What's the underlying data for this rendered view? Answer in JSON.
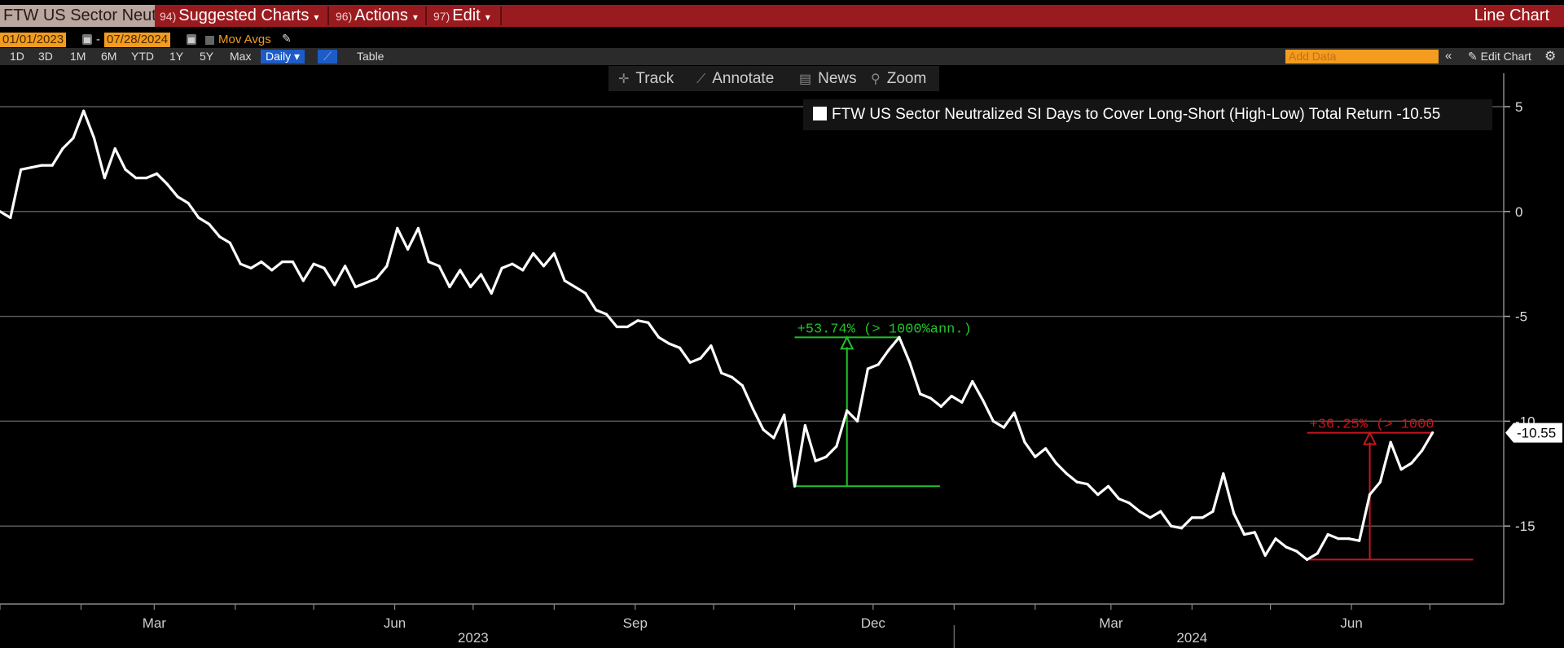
{
  "menubar": {
    "security": "FTW US Sector Neut",
    "suggested_num": "94)",
    "suggested_label": "Suggested Charts",
    "actions_num": "96)",
    "actions_label": "Actions",
    "edit_num": "97)",
    "edit_label": "Edit",
    "chart_type": "Line Chart"
  },
  "daterange": {
    "start": "01/01/2023",
    "end": "07/28/2024",
    "separator": "-",
    "mov_avgs": "Mov Avgs"
  },
  "periods": [
    "1D",
    "3D",
    "1M",
    "6M",
    "YTD",
    "1Y",
    "5Y",
    "Max"
  ],
  "frequency": "Daily",
  "table_label": "Table",
  "add_data_placeholder": "Add Data",
  "edit_chart_label": "Edit Chart",
  "toolbar": {
    "track": "Track",
    "annotate": "Annotate",
    "news": "News",
    "zoom": "Zoom"
  },
  "legend": {
    "label": "FTW US Sector Neutralized SI Days to Cover Long-Short (High-Low) Total Return -10.55"
  },
  "colors": {
    "menubar": "#9a1b1f",
    "accent_orange": "#f39c1f",
    "series": "#ffffff",
    "annotation_green": "#22c22a",
    "annotation_red": "#c8161c"
  },
  "icons": [
    "pencil-icon",
    "calendar-icon",
    "track-crosshair-icon",
    "annotate-pencil-icon",
    "news-icon",
    "zoom-magnifier-icon",
    "collapse-icon",
    "settings-gear-icon"
  ],
  "chart_data": {
    "type": "line",
    "title": "",
    "xlabel": "",
    "ylabel": "",
    "ylim": [
      -18.5,
      5.5
    ],
    "yticks": [
      5,
      0,
      -5,
      -10,
      -15
    ],
    "ytick_labels": [
      "5",
      "0",
      "-5",
      "-10",
      "-15"
    ],
    "x_range": [
      "2023-01-01",
      "2024-07-28"
    ],
    "month_ticks": [
      {
        "label": "Mar",
        "date": "2023-03-01"
      },
      {
        "label": "Jun",
        "date": "2023-06-01"
      },
      {
        "label": "Sep",
        "date": "2023-09-01"
      },
      {
        "label": "Dec",
        "date": "2023-12-01"
      },
      {
        "label": "Mar",
        "date": "2024-03-01"
      },
      {
        "label": "Jun",
        "date": "2024-06-01"
      }
    ],
    "year_labels": [
      {
        "label": "2023",
        "date": "2023-07-01"
      },
      {
        "label": "2024",
        "date": "2024-04-01"
      }
    ],
    "grid": true,
    "last_value_label": "-10.55",
    "series": [
      {
        "name": "FTW US Sector Neutralized SI Days to Cover Long-Short (High-Low) Total Return",
        "color": "#ffffff",
        "points": [
          [
            "2023-01-01",
            0.0
          ],
          [
            "2023-01-05",
            -0.3
          ],
          [
            "2023-01-09",
            2.0
          ],
          [
            "2023-01-13",
            2.1
          ],
          [
            "2023-01-17",
            2.2
          ],
          [
            "2023-01-21",
            2.2
          ],
          [
            "2023-01-25",
            3.0
          ],
          [
            "2023-01-29",
            3.5
          ],
          [
            "2023-02-02",
            4.8
          ],
          [
            "2023-02-06",
            3.5
          ],
          [
            "2023-02-10",
            1.6
          ],
          [
            "2023-02-14",
            3.0
          ],
          [
            "2023-02-18",
            2.0
          ],
          [
            "2023-02-22",
            1.6
          ],
          [
            "2023-02-26",
            1.6
          ],
          [
            "2023-03-02",
            1.8
          ],
          [
            "2023-03-06",
            1.3
          ],
          [
            "2023-03-10",
            0.7
          ],
          [
            "2023-03-14",
            0.4
          ],
          [
            "2023-03-18",
            -0.3
          ],
          [
            "2023-03-22",
            -0.6
          ],
          [
            "2023-03-26",
            -1.2
          ],
          [
            "2023-03-30",
            -1.5
          ],
          [
            "2023-04-03",
            -2.5
          ],
          [
            "2023-04-07",
            -2.7
          ],
          [
            "2023-04-11",
            -2.4
          ],
          [
            "2023-04-15",
            -2.8
          ],
          [
            "2023-04-19",
            -2.4
          ],
          [
            "2023-04-23",
            -2.4
          ],
          [
            "2023-04-27",
            -3.3
          ],
          [
            "2023-05-01",
            -2.5
          ],
          [
            "2023-05-05",
            -2.7
          ],
          [
            "2023-05-09",
            -3.5
          ],
          [
            "2023-05-13",
            -2.6
          ],
          [
            "2023-05-17",
            -3.6
          ],
          [
            "2023-05-21",
            -3.4
          ],
          [
            "2023-05-25",
            -3.2
          ],
          [
            "2023-05-29",
            -2.6
          ],
          [
            "2023-06-02",
            -0.8
          ],
          [
            "2023-06-06",
            -1.8
          ],
          [
            "2023-06-10",
            -0.8
          ],
          [
            "2023-06-14",
            -2.4
          ],
          [
            "2023-06-18",
            -2.6
          ],
          [
            "2023-06-22",
            -3.6
          ],
          [
            "2023-06-26",
            -2.8
          ],
          [
            "2023-06-30",
            -3.6
          ],
          [
            "2023-07-04",
            -3.0
          ],
          [
            "2023-07-08",
            -3.9
          ],
          [
            "2023-07-12",
            -2.7
          ],
          [
            "2023-07-16",
            -2.5
          ],
          [
            "2023-07-20",
            -2.8
          ],
          [
            "2023-07-24",
            -2.0
          ],
          [
            "2023-07-28",
            -2.6
          ],
          [
            "2023-08-01",
            -2.0
          ],
          [
            "2023-08-05",
            -3.3
          ],
          [
            "2023-08-09",
            -3.6
          ],
          [
            "2023-08-13",
            -3.9
          ],
          [
            "2023-08-17",
            -4.7
          ],
          [
            "2023-08-21",
            -4.9
          ],
          [
            "2023-08-25",
            -5.5
          ],
          [
            "2023-08-29",
            -5.5
          ],
          [
            "2023-09-02",
            -5.2
          ],
          [
            "2023-09-06",
            -5.3
          ],
          [
            "2023-09-10",
            -6.0
          ],
          [
            "2023-09-14",
            -6.3
          ],
          [
            "2023-09-18",
            -6.5
          ],
          [
            "2023-09-22",
            -7.2
          ],
          [
            "2023-09-26",
            -7.0
          ],
          [
            "2023-09-30",
            -6.4
          ],
          [
            "2023-10-04",
            -7.7
          ],
          [
            "2023-10-08",
            -7.9
          ],
          [
            "2023-10-12",
            -8.3
          ],
          [
            "2023-10-16",
            -9.4
          ],
          [
            "2023-10-20",
            -10.4
          ],
          [
            "2023-10-24",
            -10.8
          ],
          [
            "2023-10-28",
            -9.7
          ],
          [
            "2023-11-01",
            -13.1
          ],
          [
            "2023-11-05",
            -10.2
          ],
          [
            "2023-11-09",
            -11.9
          ],
          [
            "2023-11-13",
            -11.7
          ],
          [
            "2023-11-17",
            -11.2
          ],
          [
            "2023-11-21",
            -9.5
          ],
          [
            "2023-11-25",
            -10.0
          ],
          [
            "2023-11-29",
            -7.5
          ],
          [
            "2023-12-03",
            -7.3
          ],
          [
            "2023-12-07",
            -6.6
          ],
          [
            "2023-12-11",
            -6.0
          ],
          [
            "2023-12-15",
            -7.2
          ],
          [
            "2023-12-19",
            -8.7
          ],
          [
            "2023-12-23",
            -8.9
          ],
          [
            "2023-12-27",
            -9.3
          ],
          [
            "2023-12-31",
            -8.8
          ],
          [
            "2024-01-04",
            -9.1
          ],
          [
            "2024-01-08",
            -8.1
          ],
          [
            "2024-01-12",
            -9.0
          ],
          [
            "2024-01-16",
            -10.0
          ],
          [
            "2024-01-20",
            -10.3
          ],
          [
            "2024-01-24",
            -9.6
          ],
          [
            "2024-01-28",
            -11.0
          ],
          [
            "2024-02-01",
            -11.7
          ],
          [
            "2024-02-05",
            -11.3
          ],
          [
            "2024-02-09",
            -12.0
          ],
          [
            "2024-02-13",
            -12.5
          ],
          [
            "2024-02-17",
            -12.9
          ],
          [
            "2024-02-21",
            -13.0
          ],
          [
            "2024-02-25",
            -13.5
          ],
          [
            "2024-02-29",
            -13.1
          ],
          [
            "2024-03-04",
            -13.7
          ],
          [
            "2024-03-08",
            -13.9
          ],
          [
            "2024-03-12",
            -14.3
          ],
          [
            "2024-03-16",
            -14.6
          ],
          [
            "2024-03-20",
            -14.3
          ],
          [
            "2024-03-24",
            -15.0
          ],
          [
            "2024-03-28",
            -15.1
          ],
          [
            "2024-04-01",
            -14.6
          ],
          [
            "2024-04-05",
            -14.6
          ],
          [
            "2024-04-09",
            -14.3
          ],
          [
            "2024-04-13",
            -12.5
          ],
          [
            "2024-04-17",
            -14.4
          ],
          [
            "2024-04-21",
            -15.4
          ],
          [
            "2024-04-25",
            -15.3
          ],
          [
            "2024-04-29",
            -16.4
          ],
          [
            "2024-05-03",
            -15.6
          ],
          [
            "2024-05-07",
            -16.0
          ],
          [
            "2024-05-11",
            -16.2
          ],
          [
            "2024-05-15",
            -16.6
          ],
          [
            "2024-05-19",
            -16.3
          ],
          [
            "2024-05-23",
            -15.4
          ],
          [
            "2024-05-27",
            -15.6
          ],
          [
            "2024-05-31",
            -15.6
          ],
          [
            "2024-06-04",
            -15.7
          ],
          [
            "2024-06-08",
            -13.5
          ],
          [
            "2024-06-12",
            -12.9
          ],
          [
            "2024-06-16",
            -11.0
          ],
          [
            "2024-06-20",
            -12.3
          ],
          [
            "2024-06-24",
            -12.0
          ],
          [
            "2024-06-28",
            -11.4
          ],
          [
            "2024-07-02",
            -10.55
          ]
        ]
      }
    ],
    "annotations": [
      {
        "text": "+53.74% (> 1000%ann.)",
        "color": "#22c22a",
        "from": {
          "date": "2023-11-01",
          "value": -13.1
        },
        "to": {
          "date": "2023-12-11",
          "value": -6.0
        }
      },
      {
        "text": "+36.25% (> 1000",
        "color": "#c8161c",
        "from": {
          "date": "2024-05-15",
          "value": -16.6
        },
        "to": {
          "date": "2024-07-02",
          "value": -10.55
        }
      }
    ]
  }
}
